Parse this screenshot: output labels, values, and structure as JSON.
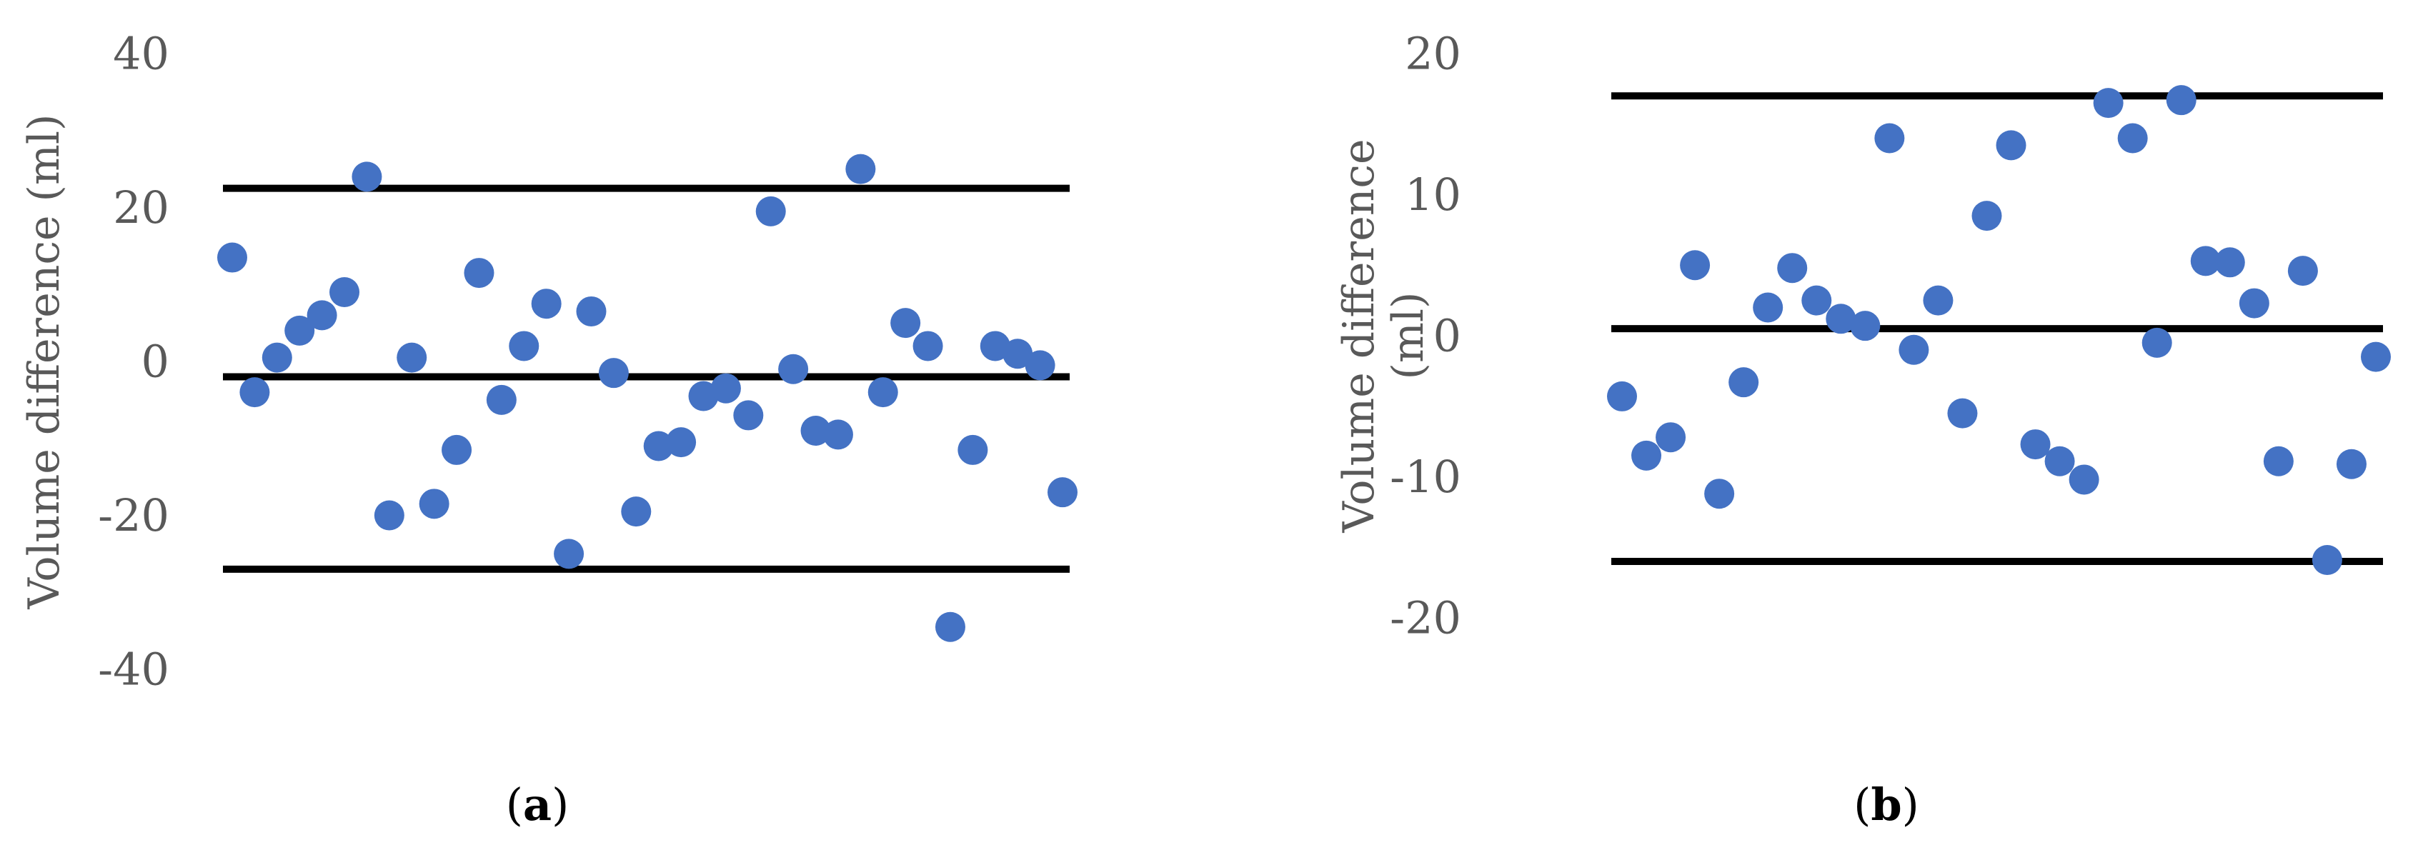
{
  "chart_data": [
    {
      "type": "scatter",
      "panel_label": "a",
      "ylabel": "Volume difference (ml)",
      "ylim": [
        -40,
        40
      ],
      "yticks": [
        -40,
        -20,
        0,
        20,
        40
      ],
      "grid": false,
      "colors": {
        "points": "#4472C4",
        "lines": "#000000",
        "ticks": "#595959"
      },
      "reference_lines": [
        22.5,
        -2,
        -27
      ],
      "points": [
        {
          "x": 1,
          "y": 13.5
        },
        {
          "x": 2,
          "y": -4
        },
        {
          "x": 3,
          "y": 0.5
        },
        {
          "x": 4,
          "y": 4
        },
        {
          "x": 5,
          "y": 6
        },
        {
          "x": 6,
          "y": 9
        },
        {
          "x": 7,
          "y": 24
        },
        {
          "x": 8,
          "y": -20
        },
        {
          "x": 9,
          "y": 0.5
        },
        {
          "x": 10,
          "y": -18.5
        },
        {
          "x": 11,
          "y": -11.5
        },
        {
          "x": 12,
          "y": 11.5
        },
        {
          "x": 13,
          "y": -5
        },
        {
          "x": 14,
          "y": 2
        },
        {
          "x": 15,
          "y": 7.5
        },
        {
          "x": 16,
          "y": -25
        },
        {
          "x": 17,
          "y": 6.5
        },
        {
          "x": 18,
          "y": -1.5
        },
        {
          "x": 19,
          "y": -19.5
        },
        {
          "x": 20,
          "y": -11
        },
        {
          "x": 21,
          "y": -10.5
        },
        {
          "x": 22,
          "y": -4.5
        },
        {
          "x": 23,
          "y": -3.5
        },
        {
          "x": 24,
          "y": -7
        },
        {
          "x": 25,
          "y": 19.5
        },
        {
          "x": 26,
          "y": -1
        },
        {
          "x": 27,
          "y": -9
        },
        {
          "x": 28,
          "y": -9.5
        },
        {
          "x": 29,
          "y": 25
        },
        {
          "x": 30,
          "y": -4
        },
        {
          "x": 31,
          "y": 5
        },
        {
          "x": 32,
          "y": 2
        },
        {
          "x": 33,
          "y": -34.5
        },
        {
          "x": 34,
          "y": -11.5
        },
        {
          "x": 35,
          "y": 2
        },
        {
          "x": 36,
          "y": 1
        },
        {
          "x": 37,
          "y": -0.5
        },
        {
          "x": 38,
          "y": -17
        }
      ]
    },
    {
      "type": "scatter",
      "panel_label": "b",
      "ylabel": "Volume difference (ml)",
      "ylim": [
        -20,
        20
      ],
      "yticks": [
        -20,
        -10,
        0,
        10,
        20
      ],
      "grid": false,
      "colors": {
        "points": "#4472C4",
        "lines": "#000000",
        "ticks": "#595959"
      },
      "reference_lines": [
        17,
        0.5,
        -16
      ],
      "points": [
        {
          "x": 1,
          "y": -4.3
        },
        {
          "x": 2,
          "y": -8.5
        },
        {
          "x": 3,
          "y": -7.2
        },
        {
          "x": 4,
          "y": 5
        },
        {
          "x": 5,
          "y": -11.2
        },
        {
          "x": 6,
          "y": -3.3
        },
        {
          "x": 7,
          "y": 2
        },
        {
          "x": 8,
          "y": 4.8
        },
        {
          "x": 9,
          "y": 2.5
        },
        {
          "x": 10,
          "y": 1.2
        },
        {
          "x": 11,
          "y": 0.7
        },
        {
          "x": 12,
          "y": 14
        },
        {
          "x": 13,
          "y": -1
        },
        {
          "x": 14,
          "y": 2.5
        },
        {
          "x": 15,
          "y": -5.5
        },
        {
          "x": 16,
          "y": 8.5
        },
        {
          "x": 17,
          "y": 13.5
        },
        {
          "x": 18,
          "y": -7.7
        },
        {
          "x": 19,
          "y": -8.9
        },
        {
          "x": 20,
          "y": -10.2
        },
        {
          "x": 21,
          "y": 16.5
        },
        {
          "x": 22,
          "y": 14
        },
        {
          "x": 23,
          "y": -0.5
        },
        {
          "x": 24,
          "y": 16.7
        },
        {
          "x": 25,
          "y": 5.3
        },
        {
          "x": 26,
          "y": 5.2
        },
        {
          "x": 27,
          "y": 2.3
        },
        {
          "x": 28,
          "y": -8.9
        },
        {
          "x": 29,
          "y": 4.6
        },
        {
          "x": 30,
          "y": -15.9
        },
        {
          "x": 31,
          "y": -9.1
        },
        {
          "x": 32,
          "y": -1.5
        }
      ]
    }
  ]
}
